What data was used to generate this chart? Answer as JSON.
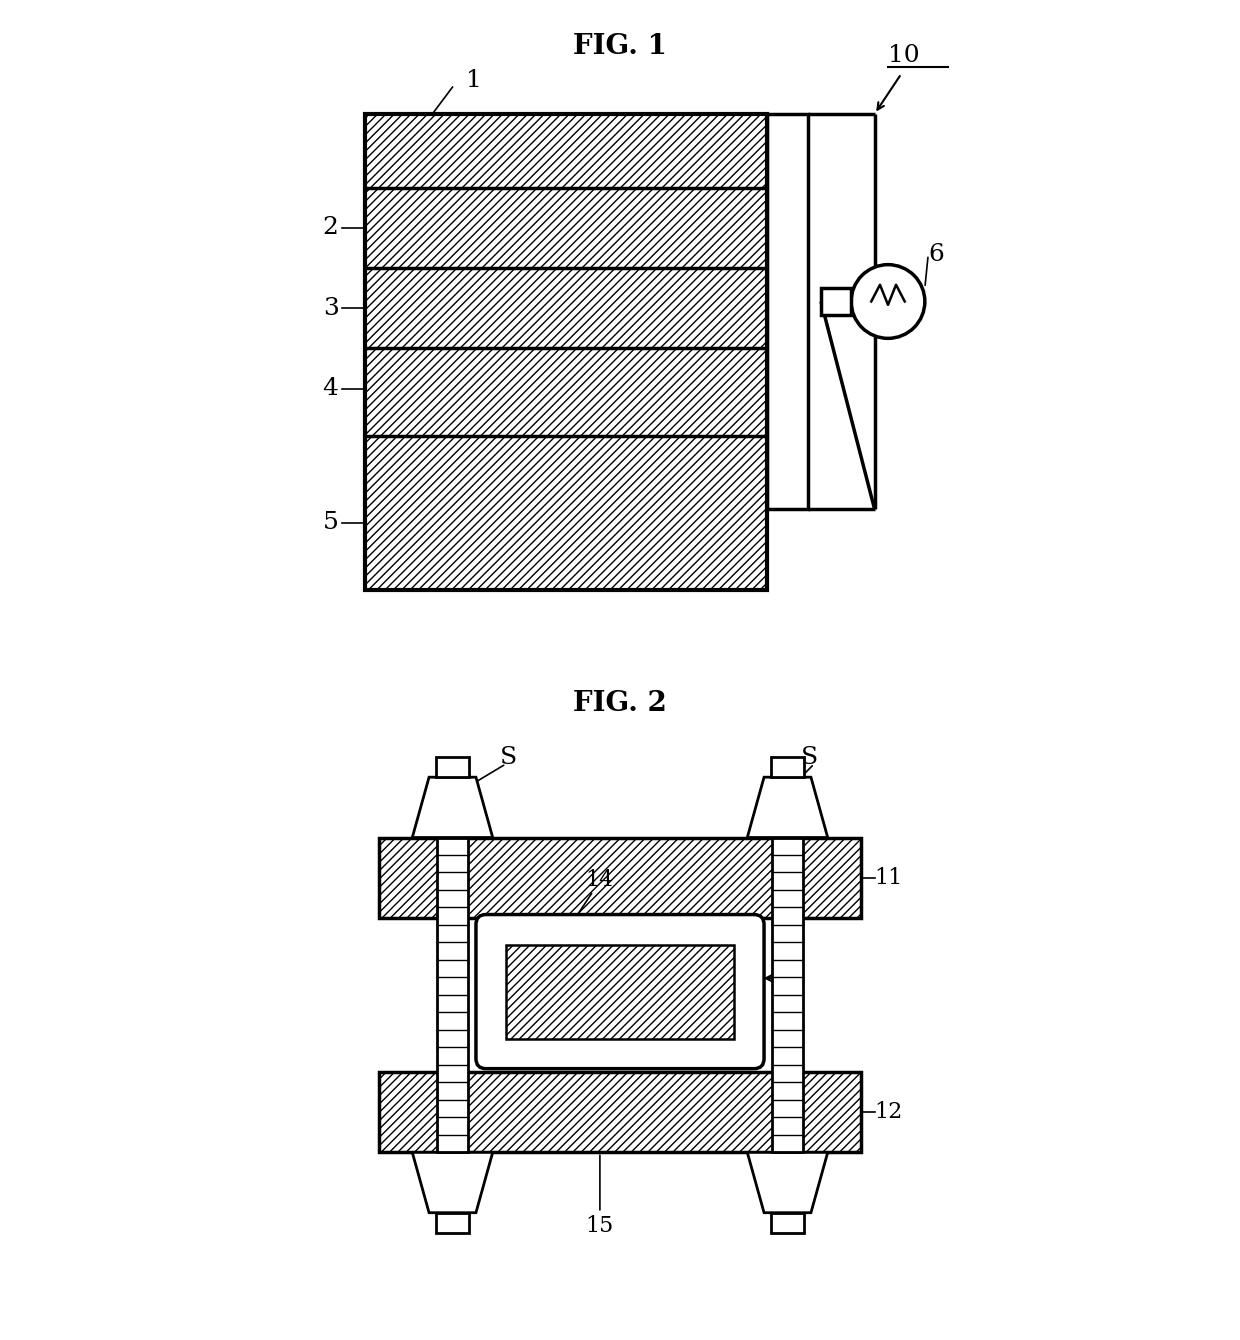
{
  "fig1_title": "FIG. 1",
  "fig2_title": "FIG. 2",
  "bg_color": "#ffffff",
  "line_color": "#000000"
}
